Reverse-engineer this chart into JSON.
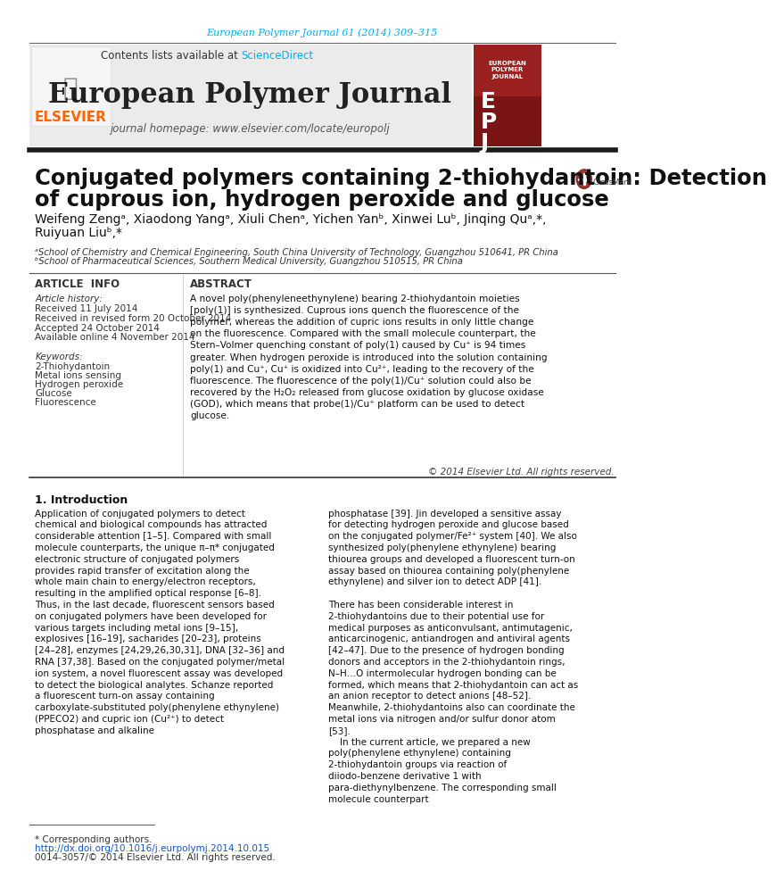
{
  "page_bg": "#ffffff",
  "top_citation": "European Polymer Journal 61 (2014) 309–315",
  "top_citation_color": "#00AEEF",
  "journal_title": "European Polymer Journal",
  "journal_header_bg": "#ebebeb",
  "contents_text": "Contents lists available at ",
  "sciencedirect_text": "ScienceDirect",
  "sciencedirect_color": "#00AEEF",
  "homepage_text": "journal homepage: www.elsevier.com/locate/europolj",
  "elsevier_color": "#FF6600",
  "article_title_line1": "Conjugated polymers containing 2-thiohydantoin: Detection",
  "article_title_line2": "of cuprous ion, hydrogen peroxide and glucose",
  "author_line1": "Weifeng Zengᵃ, Xiaodong Yangᵃ, Xiuli Chenᵃ, Yichen Yanᵇ, Xinwei Luᵇ, Jinqing Quᵃ,*,",
  "author_line2": "Ruiyuan Liuᵇ,*",
  "affil_a": "ᵃSchool of Chemistry and Chemical Engineering, South China University of Technology, Guangzhou 510641, PR China",
  "affil_b": "ᵇSchool of Pharmaceutical Sciences, Southern Medical University, Guangzhou 510515, PR China",
  "section_article_info": "ARTICLE  INFO",
  "section_abstract": "ABSTRACT",
  "article_history_title": "Article history:",
  "received": "Received 11 July 2014",
  "revised": "Received in revised form 20 October 2014",
  "accepted": "Accepted 24 October 2014",
  "available": "Available online 4 November 2014",
  "keywords_title": "Keywords:",
  "keywords": [
    "2-Thiohydantoin",
    "Metal ions sensing",
    "Hydrogen peroxide",
    "Glucose",
    "Fluorescence"
  ],
  "abstract_text": "A novel poly(phenyleneethynylene) bearing 2-thiohydantoin moieties [poly(1)] is synthesized. Cuprous ions quench the fluorescence of the polymer, whereas the addition of cupric ions results in only little change on the fluorescence. Compared with the small molecule counterpart, the Stern–Volmer quenching constant of poly(1) caused by Cu⁺ is 94 times greater. When hydrogen peroxide is introduced into the solution containing poly(1) and Cu⁺, Cu⁺ is oxidized into Cu²⁺, leading to the recovery of the fluorescence. The fluorescence of the poly(1)/Cu⁺ solution could also be recovered by the H₂O₂ released from glucose oxidation by glucose oxidase (GOD), which means that probe(1)/Cu⁺ platform can be used to detect glucose.",
  "copyright": "© 2014 Elsevier Ltd. All rights reserved.",
  "intro_title": "1. Introduction",
  "intro_col1": "    Application of conjugated polymers to detect chemical and biological compounds has attracted considerable attention [1–5]. Compared with small molecule counterparts, the unique π–π* conjugated electronic structure of conjugated polymers provides rapid transfer of excitation along the whole main chain to energy/electron receptors, resulting in the amplified optical response [6–8]. Thus, in the last decade, fluorescent sensors based on conjugated polymers have been developed for various targets including metal ions [9–15], explosives [16–19], sacharides [20–23], proteins [24–28], enzymes [24,29,26,30,31], DNA [32–36] and RNA [37,38]. Based on the conjugated polymer/metal ion system, a novel fluorescent assay was developed to detect the biological analytes. Schanze reported a fluorescent turn-on assay containing carboxylate-substituted poly(phenylene ethynylene) (PPECO2) and cupric ion (Cu²⁺) to detect phosphatase and alkaline",
  "intro_col2": "phosphatase [39]. Jin developed a sensitive assay for detecting hydrogen peroxide and glucose based on the conjugated polymer/Fe²⁺ system [40]. We also synthesized poly(phenylene ethynylene) bearing thiourea groups and developed a fluorescent turn-on assay based on thiourea containing poly(phenylene ethynylene) and silver ion to detect ADP [41].\n    There has been considerable interest in 2-thiohydantoins due to their potential use for medical purposes as anticonvulsant, antimutagenic, anticarcinogenic, antiandrogen and antiviral agents [42–47]. Due to the presence of hydrogen bonding donors and acceptors in the 2-thiohydantoin rings, N–H…O intermolecular hydrogen bonding can be formed, which means that 2-thiohydantoin can act as an anion receptor to detect anions [48–52]. Meanwhile, 2-thiohydantoins also can coordinate the metal ions via nitrogen and/or sulfur donor atom [53].\n    In the current article, we prepared a new poly(phenylene ethynylene) containing 2-thiohydantoin groups via reaction of diiodo-benzene derivative 1 with para-diethynylbenzene. The corresponding small molecule counterpart",
  "footnote_corresponding": "* Corresponding authors.",
  "footnote_doi": "http://dx.doi.org/10.1016/j.eurpolymj.2014.10.015",
  "footnote_issn": "0014-3057/© 2014 Elsevier Ltd. All rights reserved."
}
